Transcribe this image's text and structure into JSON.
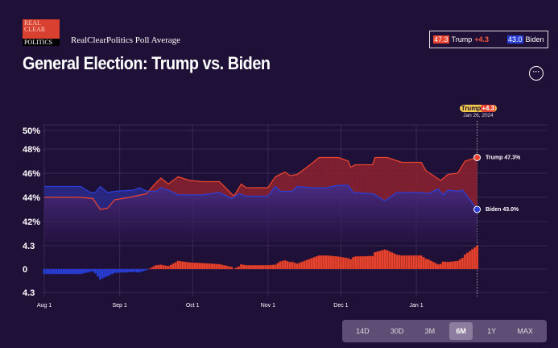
{
  "logo": {
    "line1": "REAL",
    "line2": "CLEAR",
    "line3": "POLITICS"
  },
  "subtitle": "RealClearPolitics Poll Average",
  "title": "General Election: Trump vs. Biden",
  "legend": {
    "trump_value": "47.3",
    "trump_name": "Trump",
    "spread": "+4.3",
    "biden_value": "43.0",
    "biden_name": "Biden"
  },
  "more_label": "···",
  "tooltip": {
    "name": "Trump",
    "spread": "+4.3",
    "date": "Jan 26, 2024"
  },
  "end_labels": {
    "trump": "Trump 47.3%",
    "biden": "Biden 43.0%"
  },
  "range_buttons": [
    {
      "label": "14D"
    },
    {
      "label": "30D"
    },
    {
      "label": "3M"
    },
    {
      "label": "6M",
      "active": true
    },
    {
      "label": "1Y"
    },
    {
      "label": "MAX"
    }
  ],
  "colors": {
    "trump": "#e8432e",
    "biden": "#2a3fd6",
    "background": "#1f1038"
  },
  "chart_data": {
    "type": "line",
    "title": "General Election: Trump vs. Biden",
    "x_unit": "days since Aug 1, 2023",
    "x_ticks": [
      {
        "d": 0,
        "label": "Aug 1"
      },
      {
        "d": 31,
        "label": "Sep 1"
      },
      {
        "d": 61,
        "label": "Oct 1"
      },
      {
        "d": 92,
        "label": "Nov 1"
      },
      {
        "d": 122,
        "label": "Dec 1"
      },
      {
        "d": 153,
        "label": "Jan 1"
      }
    ],
    "y_ticks": [
      {
        "v": 50,
        "label": "50%"
      },
      {
        "v": 48,
        "label": "48%"
      },
      {
        "v": 46,
        "label": "46%"
      },
      {
        "v": 44,
        "label": "44%"
      },
      {
        "v": 42,
        "label": "42%"
      }
    ],
    "ylim": [
      41,
      50
    ],
    "spread_ticks": [
      {
        "v": 4.3,
        "label": "4.3"
      },
      {
        "v": 0,
        "label": "0"
      },
      {
        "v": -4.3,
        "label": "4.3"
      }
    ],
    "spread_lim": [
      -4.3,
      4.3
    ],
    "series": [
      {
        "name": "Trump",
        "points": [
          [
            0,
            44.0
          ],
          [
            15,
            44.0
          ],
          [
            20,
            43.9
          ],
          [
            23,
            43.0
          ],
          [
            26,
            43.1
          ],
          [
            29,
            43.8
          ],
          [
            35,
            44.0
          ],
          [
            42,
            44.3
          ],
          [
            45,
            45.0
          ],
          [
            48,
            45.6
          ],
          [
            51,
            45.1
          ],
          [
            55,
            45.7
          ],
          [
            60,
            45.4
          ],
          [
            65,
            45.3
          ],
          [
            72,
            45.3
          ],
          [
            78,
            44.1
          ],
          [
            81,
            45.1
          ],
          [
            83,
            44.8
          ],
          [
            92,
            44.8
          ],
          [
            95,
            45.7
          ],
          [
            99,
            46.1
          ],
          [
            101,
            45.8
          ],
          [
            104,
            45.9
          ],
          [
            110,
            46.8
          ],
          [
            113,
            47.3
          ],
          [
            121,
            47.3
          ],
          [
            125,
            47.0
          ],
          [
            126,
            46.5
          ],
          [
            128,
            46.7
          ],
          [
            135,
            46.7
          ],
          [
            136,
            47.3
          ],
          [
            141,
            47.3
          ],
          [
            147,
            46.9
          ],
          [
            155,
            46.9
          ],
          [
            157,
            46.2
          ],
          [
            163,
            45.4
          ],
          [
            166,
            45.9
          ],
          [
            170,
            46.0
          ],
          [
            173,
            47.0
          ],
          [
            178,
            47.3
          ]
        ]
      },
      {
        "name": "Biden",
        "points": [
          [
            0,
            44.9
          ],
          [
            15,
            44.9
          ],
          [
            19,
            44.4
          ],
          [
            21,
            44.4
          ],
          [
            23,
            44.9
          ],
          [
            26,
            44.4
          ],
          [
            29,
            44.5
          ],
          [
            37,
            44.6
          ],
          [
            39,
            44.8
          ],
          [
            42,
            44.5
          ],
          [
            46,
            44.5
          ],
          [
            48,
            44.8
          ],
          [
            52,
            44.5
          ],
          [
            55,
            44.2
          ],
          [
            60,
            44.2
          ],
          [
            65,
            44.2
          ],
          [
            72,
            44.4
          ],
          [
            77,
            43.9
          ],
          [
            80,
            44.3
          ],
          [
            83,
            44.1
          ],
          [
            92,
            44.1
          ],
          [
            95,
            44.9
          ],
          [
            97,
            44.5
          ],
          [
            102,
            44.5
          ],
          [
            104,
            44.9
          ],
          [
            110,
            44.8
          ],
          [
            116,
            44.8
          ],
          [
            121,
            45.0
          ],
          [
            125,
            45.0
          ],
          [
            127,
            44.4
          ],
          [
            135,
            44.3
          ],
          [
            137,
            44.1
          ],
          [
            140,
            43.7
          ],
          [
            145,
            44.4
          ],
          [
            155,
            44.4
          ],
          [
            158,
            44.3
          ],
          [
            162,
            44.7
          ],
          [
            164,
            44.2
          ],
          [
            166,
            44.6
          ],
          [
            170,
            44.5
          ],
          [
            172,
            44.6
          ],
          [
            178,
            43.0
          ]
        ]
      }
    ]
  }
}
